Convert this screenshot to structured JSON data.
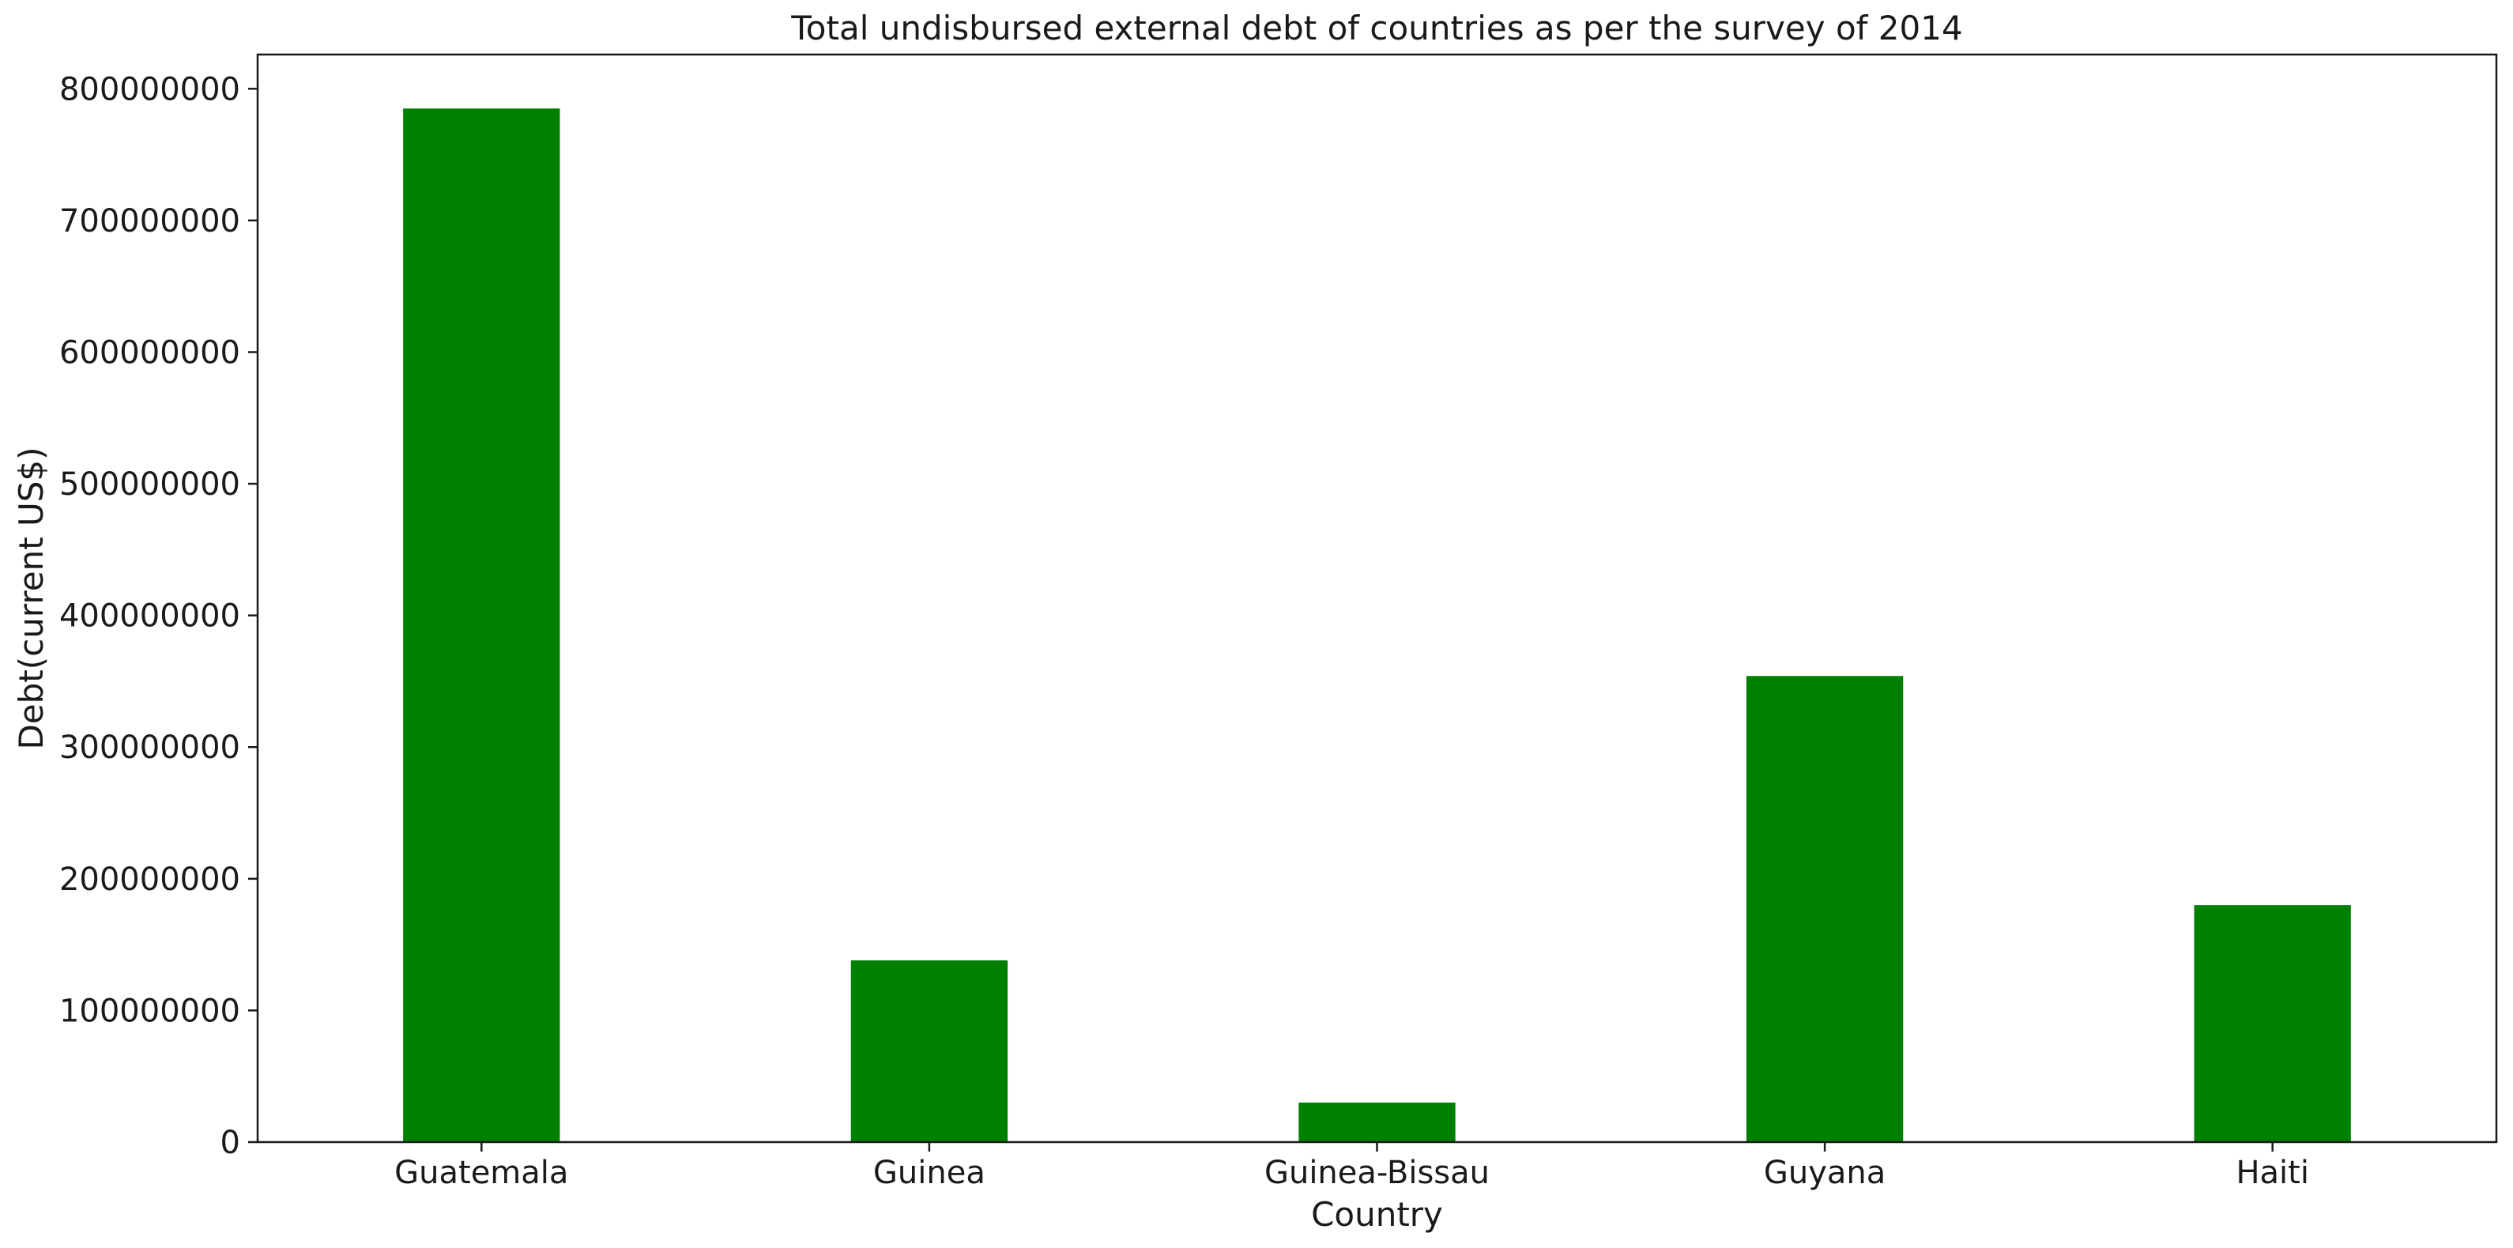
{
  "chart_data": {
    "type": "bar",
    "title": "Total undisbursed external debt of countries as per the survey of 2014",
    "xlabel": "Country",
    "ylabel": "Debt(current US$)",
    "categories": [
      "Guatemala",
      "Guinea",
      "Guinea-Bissau",
      "Guyana",
      "Haiti"
    ],
    "values": [
      785000000,
      138000000,
      30000000,
      354000000,
      180000000
    ],
    "ylim": [
      0,
      826000000
    ],
    "yticks": [
      0,
      100000000,
      200000000,
      300000000,
      400000000,
      500000000,
      600000000,
      700000000,
      800000000
    ],
    "bar_color": "#008000",
    "grid": false,
    "legend": "none"
  }
}
